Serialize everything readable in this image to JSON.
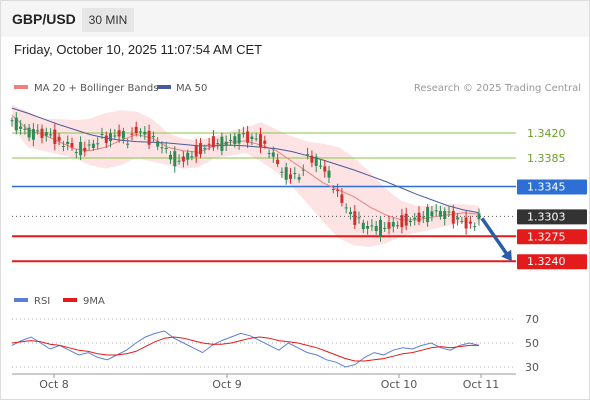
{
  "header": {
    "symbol": "GBP/USD",
    "timeframe": "30 MIN",
    "datetime": "Friday, October 10, 2025 11:07:54 AM CET"
  },
  "legend": {
    "ma20_label": "MA 20 + Bollinger Bands",
    "ma50_label": "MA 50",
    "credit": "Research © 2025 Trading Central",
    "rsi_label": "RSI",
    "rsi_ma_label": "9MA"
  },
  "colors": {
    "candle_up": "#2e8b57",
    "candle_down": "#d0312d",
    "ma20": "#f08080",
    "bollinger_fill": "#fde0e0",
    "ma50": "#4a5a9a",
    "resistance_green": "#8bc34a",
    "level_blue": "#2e6fd6",
    "support_red": "#e31b1b",
    "current_bg": "#333333",
    "arrow": "#2a5ca8",
    "rsi_line": "#5b7fd6",
    "rsi_ma_line": "#e31b1b"
  },
  "chart_data": [
    {
      "type": "candlestick",
      "x_ticks": [
        "Oct 8",
        "Oct 9",
        "Oct 10",
        "Oct 11"
      ],
      "ylim": [
        1.3215,
        1.3465
      ],
      "levels": [
        {
          "value": 1.342,
          "label": "1.3420",
          "style": "resistance"
        },
        {
          "value": 1.3385,
          "label": "1.3385",
          "style": "resistance"
        },
        {
          "value": 1.3345,
          "label": "1.3345",
          "style": "pivot"
        },
        {
          "value": 1.3303,
          "label": "1.3303",
          "style": "current"
        },
        {
          "value": 1.3275,
          "label": "1.3275",
          "style": "support"
        },
        {
          "value": 1.324,
          "label": "1.3240",
          "style": "support"
        }
      ],
      "ma20": [
        1.3445,
        1.3425,
        1.3418,
        1.3408,
        1.3398,
        1.3395,
        1.34,
        1.341,
        1.3418,
        1.3413,
        1.34,
        1.3395,
        1.3393,
        1.3402,
        1.3407,
        1.3409,
        1.3403,
        1.3395,
        1.338,
        1.3365,
        1.335,
        1.334,
        1.333,
        1.3316,
        1.3305,
        1.3298,
        1.3298,
        1.3302,
        1.3305,
        1.3308,
        1.3306
      ],
      "ma50": [
        1.3455,
        1.3448,
        1.344,
        1.3432,
        1.3425,
        1.3418,
        1.3413,
        1.341,
        1.3408,
        1.3407,
        1.3406,
        1.3404,
        1.3402,
        1.3402,
        1.3403,
        1.3402,
        1.34,
        1.3398,
        1.3394,
        1.3388,
        1.3382,
        1.3375,
        1.3368,
        1.336,
        1.3352,
        1.3343,
        1.3334,
        1.3326,
        1.3318,
        1.3312,
        1.3308
      ],
      "bb_upper": [
        1.346,
        1.345,
        1.344,
        1.344,
        1.3438,
        1.344,
        1.3448,
        1.3452,
        1.345,
        1.344,
        1.342,
        1.3412,
        1.341,
        1.3415,
        1.3422,
        1.3428,
        1.3435,
        1.3425,
        1.3415,
        1.3408,
        1.3405,
        1.34,
        1.3385,
        1.3365,
        1.3342,
        1.3325,
        1.3318,
        1.3318,
        1.332,
        1.332,
        1.3318
      ],
      "bb_lower": [
        1.343,
        1.34,
        1.3395,
        1.339,
        1.3385,
        1.3375,
        1.337,
        1.3375,
        1.3385,
        1.338,
        1.3375,
        1.337,
        1.3372,
        1.3385,
        1.3388,
        1.3392,
        1.338,
        1.3365,
        1.3345,
        1.332,
        1.3295,
        1.3272,
        1.3262,
        1.326,
        1.3265,
        1.3275,
        1.328,
        1.3285,
        1.329,
        1.3295,
        1.3292
      ],
      "price_path": [
        1.3438,
        1.3425,
        1.3418,
        1.342,
        1.3415,
        1.3408,
        1.34,
        1.3396,
        1.3405,
        1.3412,
        1.342,
        1.3415,
        1.3428,
        1.3412,
        1.3402,
        1.3385,
        1.3382,
        1.3392,
        1.34,
        1.3408,
        1.3404,
        1.341,
        1.3415,
        1.3412,
        1.3406,
        1.338,
        1.336,
        1.3355,
        1.3385,
        1.3378,
        1.336,
        1.333,
        1.3305,
        1.329,
        1.3285,
        1.3288,
        1.3292,
        1.3298,
        1.33,
        1.3305,
        1.3308,
        1.3304,
        1.33,
        1.3292,
        1.3303
      ],
      "forecast_arrow": {
        "from": 1.3303,
        "to": 1.324
      }
    },
    {
      "type": "line",
      "name": "RSI",
      "yticks": [
        70,
        50,
        30
      ],
      "ylim": [
        25,
        75
      ],
      "rsi": [
        48,
        52,
        55,
        50,
        45,
        48,
        44,
        40,
        42,
        38,
        36,
        40,
        44,
        50,
        55,
        58,
        60,
        54,
        50,
        46,
        42,
        48,
        52,
        55,
        58,
        56,
        52,
        48,
        44,
        50,
        46,
        42,
        40,
        36,
        34,
        30,
        32,
        38,
        42,
        40,
        44,
        46,
        45,
        48,
        50,
        46,
        44,
        48,
        50,
        48
      ],
      "rsi_ma": [
        50,
        51,
        52,
        51,
        49,
        48,
        46,
        44,
        43,
        41,
        40,
        40,
        41,
        43,
        47,
        51,
        54,
        55,
        54,
        52,
        50,
        49,
        49,
        50,
        52,
        54,
        55,
        54,
        52,
        51,
        50,
        48,
        46,
        43,
        40,
        37,
        35,
        35,
        36,
        37,
        39,
        41,
        42,
        44,
        46,
        47,
        46,
        47,
        48,
        48
      ]
    }
  ]
}
